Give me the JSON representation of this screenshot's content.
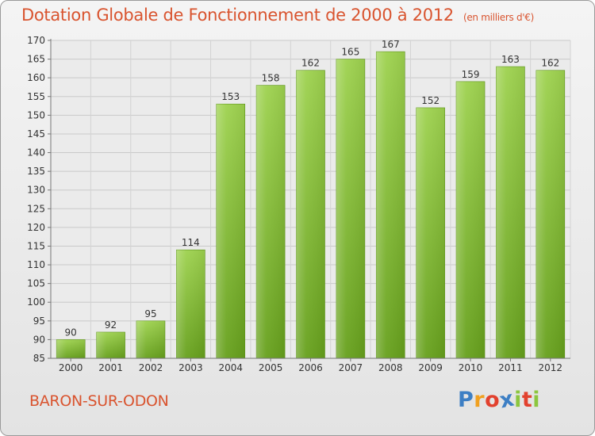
{
  "header": {
    "title": "Dotation Globale de Fonctionnement de 2000 à 2012",
    "unit": "(en milliers d'€)"
  },
  "footer": {
    "commune": "BARON-SUR-ODON",
    "brand_letters": [
      "P",
      "r",
      "o",
      "x",
      "i",
      "t",
      "i"
    ],
    "brand_colors": [
      "#3d7fc4",
      "#f0a020",
      "#e2412e",
      "#3d7fc4",
      "#8cc63f",
      "#e2412e",
      "#8cc63f"
    ]
  },
  "chart_data": {
    "type": "bar",
    "categories": [
      "2000",
      "2001",
      "2002",
      "2003",
      "2004",
      "2005",
      "2006",
      "2007",
      "2008",
      "2009",
      "2010",
      "2011",
      "2012"
    ],
    "values": [
      90,
      92,
      95,
      114,
      153,
      158,
      162,
      165,
      167,
      152,
      159,
      163,
      162
    ],
    "data_labels": [
      "90",
      "92",
      "95",
      "114",
      "153",
      "158",
      "162",
      "165",
      "167",
      "152",
      "159",
      "163",
      "162"
    ],
    "yticks": [
      85,
      90,
      95,
      100,
      105,
      110,
      115,
      120,
      125,
      130,
      135,
      140,
      145,
      150,
      155,
      160,
      165,
      170
    ],
    "ylim": [
      85,
      170
    ],
    "grid": true,
    "bar_color": "#8cc63f",
    "bar_color_dark": "#6aa321"
  }
}
